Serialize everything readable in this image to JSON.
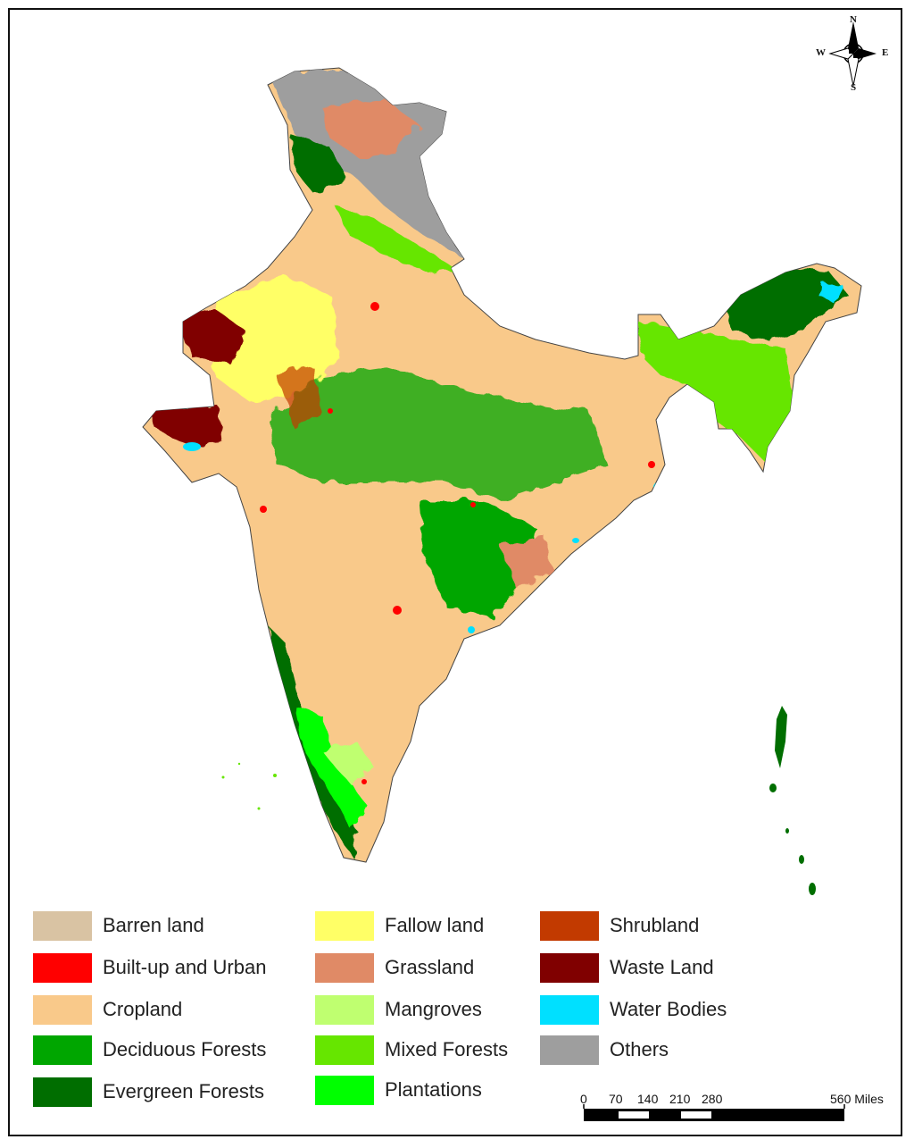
{
  "compass": {
    "north": "N",
    "south": "S",
    "east": "E",
    "west": "W"
  },
  "legend": [
    {
      "label": "Barren land",
      "color": "#d9c3a3",
      "icon": "barren-land-swatch"
    },
    {
      "label": "Built-up and Urban",
      "color": "#ff0000",
      "icon": "built-up-swatch"
    },
    {
      "label": "Cropland",
      "color": "#f9c98a",
      "icon": "cropland-swatch"
    },
    {
      "label": "Deciduous Forests",
      "color": "#00a600",
      "icon": "deciduous-forest-swatch"
    },
    {
      "label": "Evergreen Forests",
      "color": "#006e00",
      "icon": "evergreen-forest-swatch"
    },
    {
      "label": "Fallow land",
      "color": "#ffff66",
      "icon": "fallow-land-swatch"
    },
    {
      "label": "Grassland",
      "color": "#e08a66",
      "icon": "grassland-swatch"
    },
    {
      "label": "Mangroves",
      "color": "#bfff70",
      "icon": "mangroves-swatch"
    },
    {
      "label": "Mixed Forests",
      "color": "#66e600",
      "icon": "mixed-forest-swatch"
    },
    {
      "label": "Plantations",
      "color": "#00ff00",
      "icon": "plantations-swatch"
    },
    {
      "label": "Shrubland",
      "color": "#c23a00",
      "icon": "shrubland-swatch"
    },
    {
      "label": "Waste Land",
      "color": "#800000",
      "icon": "waste-land-swatch"
    },
    {
      "label": "Water Bodies",
      "color": "#00e0ff",
      "icon": "water-bodies-swatch"
    },
    {
      "label": "Others",
      "color": "#9e9e9e",
      "icon": "others-swatch"
    }
  ],
  "scale_bar": {
    "ticks": [
      "0",
      "70",
      "140",
      "210",
      "280",
      "560 Miles"
    ]
  }
}
